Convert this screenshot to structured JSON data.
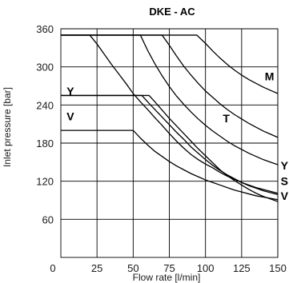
{
  "chart_data": {
    "type": "line",
    "title": "DKE - AC",
    "xlabel": "Flow rate [l/min]",
    "ylabel": "Inlet pressure [bar]",
    "xlim": [
      0,
      150
    ],
    "ylim": [
      0,
      360
    ],
    "x_ticks": [
      0,
      25,
      50,
      75,
      100,
      125,
      150
    ],
    "x_tick_labels": [
      "0",
      "25",
      "50",
      "75",
      "100",
      "125",
      "150"
    ],
    "y_ticks": [
      60,
      120,
      180,
      240,
      300,
      360
    ],
    "y_tick_labels": [
      "60",
      "120",
      "180",
      "240",
      "300",
      "360"
    ],
    "grid": true,
    "colors": {
      "line": "#000000",
      "text": "#1a1a1a",
      "background": "#ffffff"
    },
    "series": [
      {
        "name": "M",
        "x": [
          0,
          94,
          100,
          105,
          110,
          115,
          120,
          125,
          130,
          135,
          140,
          145,
          150
        ],
        "y": [
          350,
          350,
          337,
          325,
          314,
          304,
          295,
          287,
          280,
          274,
          268,
          263,
          258
        ]
      },
      {
        "name": "T",
        "x": [
          0,
          70,
          75,
          80,
          85,
          90,
          95,
          100,
          105,
          110,
          115,
          120,
          125,
          130,
          135,
          140,
          145,
          150
        ],
        "y": [
          350,
          350,
          334,
          317,
          301,
          287,
          274,
          262,
          252,
          242,
          233,
          225,
          218,
          211,
          205,
          199,
          194,
          189
        ]
      },
      {
        "name": "Y",
        "x": [
          0,
          55,
          60,
          65,
          70,
          75,
          80,
          85,
          90,
          95,
          100,
          105,
          110,
          115,
          120,
          125,
          130,
          135,
          140,
          145,
          150
        ],
        "y": [
          350,
          350,
          326,
          305,
          286,
          269,
          254,
          241,
          229,
          218,
          208,
          199,
          191,
          183,
          176,
          170,
          164,
          159,
          154,
          150,
          146
        ]
      },
      {
        "name": "S",
        "x": [
          0,
          20,
          25,
          30,
          35,
          40,
          45,
          50,
          55,
          60,
          65,
          70,
          75,
          80,
          85,
          90,
          95,
          100,
          105,
          110,
          115,
          120,
          125,
          130,
          135,
          140,
          145,
          150
        ],
        "y": [
          350,
          350,
          336,
          320,
          304,
          289,
          274,
          258,
          245,
          233,
          220,
          208,
          195,
          183,
          172,
          162,
          154,
          147,
          141,
          134,
          128,
          123,
          118,
          113,
          109,
          105,
          102,
          99
        ]
      },
      {
        "name": "Y",
        "x": [
          0,
          56,
          60,
          65,
          70,
          75,
          80,
          85,
          90,
          95,
          100,
          105,
          110,
          115,
          120,
          125,
          130,
          135,
          140,
          145,
          150
        ],
        "y": [
          255,
          255,
          245,
          233,
          221,
          209,
          197,
          186,
          174,
          164,
          154,
          145,
          137,
          130,
          124,
          118,
          114,
          110,
          107,
          104,
          101
        ]
      },
      {
        "name": "V",
        "x": [
          0,
          61,
          65,
          70,
          75,
          80,
          85,
          90,
          95,
          100,
          105,
          110,
          115,
          120,
          125,
          130,
          135,
          140,
          145,
          150
        ],
        "y": [
          255,
          255,
          245,
          232,
          219,
          207,
          195,
          183,
          171,
          160,
          149,
          138,
          129,
          121,
          114,
          107,
          101,
          96,
          92,
          88
        ]
      },
      {
        "name": "V",
        "x": [
          0,
          50,
          55,
          60,
          65,
          70,
          75,
          80,
          85,
          90,
          95,
          100,
          105,
          110,
          115,
          120,
          125,
          130,
          135,
          140,
          145,
          150
        ],
        "y": [
          200,
          200,
          188,
          177,
          167,
          159,
          151,
          144,
          138,
          132,
          127,
          122,
          118,
          114,
          110,
          106,
          103,
          100,
          97,
          95,
          93,
          91
        ]
      }
    ],
    "labels": [
      {
        "text": "M",
        "x": 141,
        "y": 285
      },
      {
        "text": "T",
        "x": 112,
        "y": 219
      },
      {
        "text": "Y",
        "x": 4,
        "y": 262
      },
      {
        "text": "V",
        "x": 4,
        "y": 222
      },
      {
        "text": "Y",
        "x": 152,
        "y": 145
      },
      {
        "text": "S",
        "x": 152,
        "y": 120
      },
      {
        "text": "V",
        "x": 152,
        "y": 97
      }
    ]
  }
}
